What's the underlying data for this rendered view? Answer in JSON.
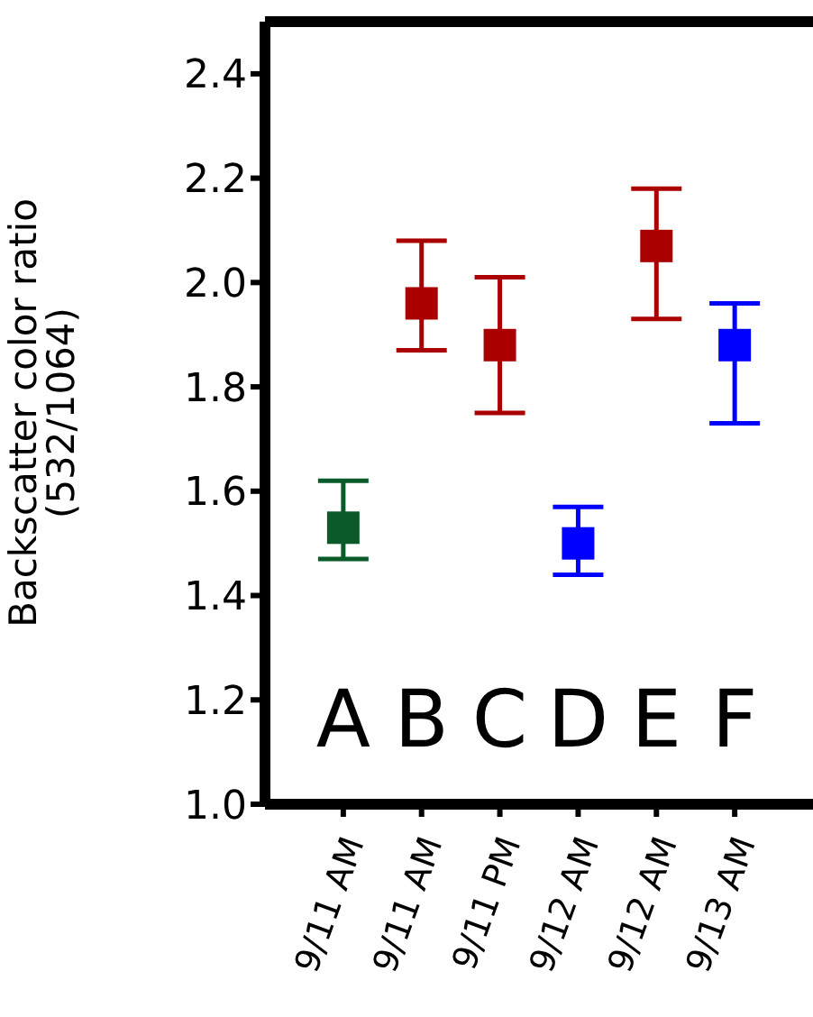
{
  "chart_data": {
    "type": "scatter",
    "ylabel": "Backscatter color ratio\n(532/1064)",
    "categories": [
      "9/11 AM",
      "9/11 AM",
      "9/11 PM",
      "9/12 AM",
      "9/12 AM",
      "9/13 AM"
    ],
    "values": [
      1.53,
      1.96,
      1.88,
      1.5,
      2.07,
      1.88
    ],
    "errors": [
      [
        1.47,
        1.62
      ],
      [
        1.87,
        2.08
      ],
      [
        1.75,
        2.01
      ],
      [
        1.44,
        1.57
      ],
      [
        1.93,
        2.18
      ],
      [
        1.73,
        1.96
      ]
    ],
    "colors": [
      "#0a5a2a",
      "#aa0000",
      "#aa0000",
      "#0000ff",
      "#aa0000",
      "#0000ff"
    ],
    "annotations": [
      "A",
      "B",
      "C",
      "D",
      "E",
      "F"
    ],
    "ylim": [
      1.0,
      2.5
    ],
    "yticks": [
      {
        "value": 1,
        "label": "1.0"
      },
      1.2,
      1.4,
      1.6,
      1.8,
      {
        "value": 2,
        "label": "2.0"
      },
      2.2,
      2.4
    ],
    "marker": "square"
  }
}
